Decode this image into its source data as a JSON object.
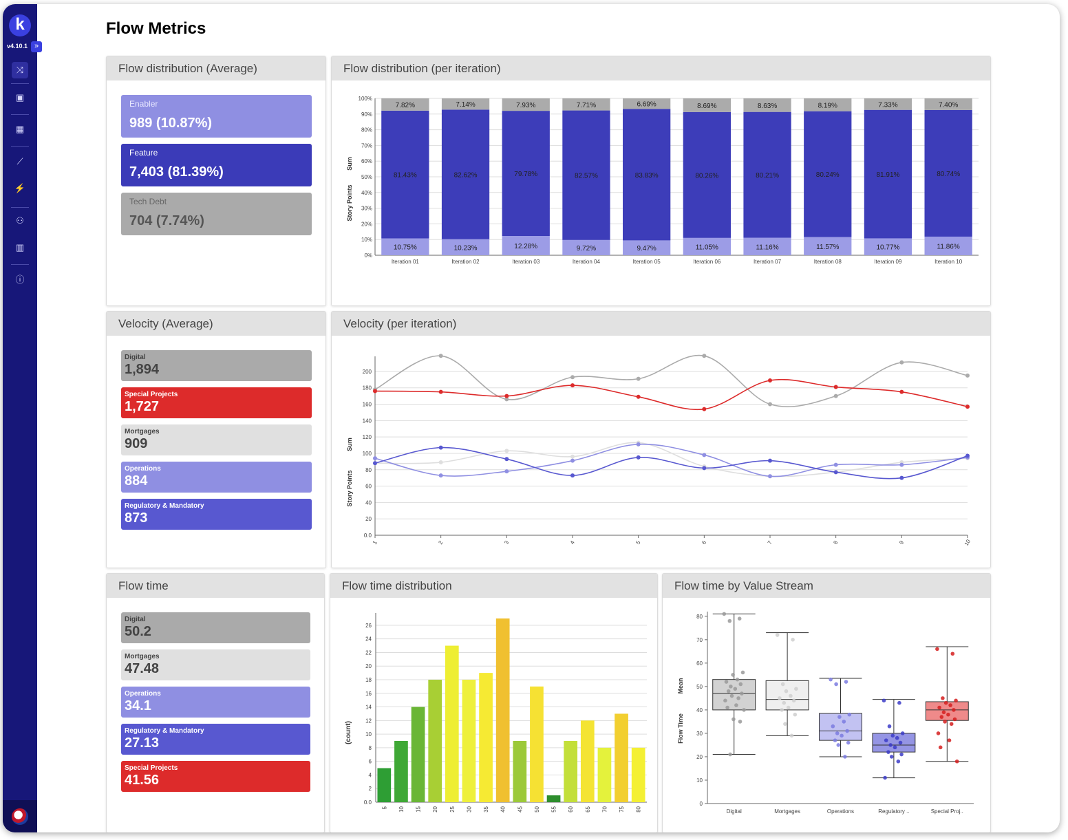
{
  "sidebar": {
    "logo_letter": "k",
    "version": "v4.10.1",
    "expand_glyph": "»",
    "items": [
      {
        "icon": "flow-icon",
        "glyph": "⤨"
      },
      {
        "icon": "briefcase-icon",
        "glyph": "▣"
      },
      {
        "icon": "calendar-icon",
        "glyph": "▦"
      },
      {
        "icon": "chart-line-icon",
        "glyph": "⟋"
      },
      {
        "icon": "plug-icon",
        "glyph": "⚡"
      },
      {
        "icon": "team-icon",
        "glyph": "⚇"
      },
      {
        "icon": "building-icon",
        "glyph": "▥"
      },
      {
        "icon": "info-icon",
        "glyph": "ⓘ"
      }
    ]
  },
  "page": {
    "title": "Flow Metrics"
  },
  "panels": {
    "flow_dist_avg": "Flow distribution (Average)",
    "flow_dist_iter": "Flow distribution (per iteration)",
    "velocity_avg": "Velocity (Average)",
    "velocity_iter": "Velocity (per iteration)",
    "flow_time": "Flow time",
    "flow_time_dist": "Flow time distribution",
    "flow_time_vs": "Flow time by Value Stream"
  },
  "flow_cards": [
    {
      "label": "Enabler",
      "value": "989 (10.87%)",
      "bg": "#8f8fe2",
      "fg": "#ffffff",
      "labcolor": "#e8e8ff"
    },
    {
      "label": "Feature",
      "value": "7,403 (81.39%)",
      "bg": "#3b3bb8",
      "fg": "#ffffff",
      "labcolor": "#ffffff"
    },
    {
      "label": "Tech Debt",
      "value": "704 (7.74%)",
      "bg": "#aaaaaa",
      "fg": "#555555",
      "labcolor": "#666666"
    }
  ],
  "velocity_cards": [
    {
      "label": "Digital",
      "value": "1,894",
      "bg": "#aaaaaa",
      "fg": "#444444"
    },
    {
      "label": "Special Projects",
      "value": "1,727",
      "bg": "#dd2b2b",
      "fg": "#ffffff"
    },
    {
      "label": "Mortgages",
      "value": "909",
      "bg": "#e0e0e0",
      "fg": "#444444"
    },
    {
      "label": "Operations",
      "value": "884",
      "bg": "#8f8fe2",
      "fg": "#ffffff"
    },
    {
      "label": "Regulatory & Mandatory",
      "value": "873",
      "bg": "#5858d0",
      "fg": "#ffffff"
    }
  ],
  "flowtime_cards": [
    {
      "label": "Digital",
      "value": "50.2",
      "bg": "#aaaaaa",
      "fg": "#444444"
    },
    {
      "label": "Mortgages",
      "value": "47.48",
      "bg": "#e0e0e0",
      "fg": "#444444"
    },
    {
      "label": "Operations",
      "value": "34.1",
      "bg": "#8f8fe2",
      "fg": "#ffffff"
    },
    {
      "label": "Regulatory & Mandatory",
      "value": "27.13",
      "bg": "#5858d0",
      "fg": "#ffffff"
    },
    {
      "label": "Special Projects",
      "value": "41.56",
      "bg": "#dd2b2b",
      "fg": "#ffffff"
    }
  ],
  "chart_data": [
    {
      "type": "bar",
      "stacked": true,
      "ylabel": "Story Points",
      "ylabel2": "Sum",
      "ylim": [
        0,
        100
      ],
      "yticks": [
        "0%",
        "10%",
        "20%",
        "30%",
        "40%",
        "50%",
        "60%",
        "70%",
        "80%",
        "90%",
        "100%"
      ],
      "categories": [
        "Iteration 01",
        "Iteration 02",
        "Iteration 03",
        "Iteration 04",
        "Iteration 05",
        "Iteration 06",
        "Iteration 07",
        "Iteration 08",
        "Iteration 09",
        "Iteration 10"
      ],
      "series": [
        {
          "values": [
            10.75,
            10.23,
            12.28,
            9.72,
            9.47,
            11.05,
            11.16,
            11.57,
            10.77,
            11.86
          ],
          "labels": [
            "10.75%",
            "10.23%",
            "12.28%",
            "9.72%",
            "9.47%",
            "11.05%",
            "11.16%",
            "11.57%",
            "10.77%",
            "11.86%"
          ],
          "color": "#9c9ce6"
        },
        {
          "values": [
            81.43,
            82.62,
            79.78,
            82.57,
            83.83,
            80.26,
            80.21,
            80.24,
            81.91,
            80.74
          ],
          "labels": [
            "81.43%",
            "82.62%",
            "79.78%",
            "82.57%",
            "83.83%",
            "80.26%",
            "80.21%",
            "80.24%",
            "81.91%",
            "80.74%"
          ],
          "color": "#3d3db9"
        },
        {
          "values": [
            7.82,
            7.14,
            7.93,
            7.71,
            6.69,
            8.69,
            8.63,
            8.19,
            7.33,
            7.4
          ],
          "labels": [
            "7.82%",
            "7.14%",
            "7.93%",
            "7.71%",
            "6.69%",
            "8.69%",
            "8.63%",
            "8.19%",
            "7.33%",
            "7.40%"
          ],
          "color": "#ababab"
        }
      ]
    },
    {
      "type": "line",
      "ylabel": "Story Points",
      "ylabel2": "Sum",
      "ylim": [
        0,
        210
      ],
      "yticks": [
        "0.0",
        "20",
        "40",
        "60",
        "80",
        "100",
        "120",
        "140",
        "160",
        "180",
        "200"
      ],
      "x": [
        "1",
        "2",
        "3",
        "4",
        "5",
        "6",
        "7",
        "8",
        "9",
        "10"
      ],
      "series": [
        {
          "color": "#ababab",
          "values": [
            178,
            219,
            166,
            193,
            191,
            219,
            160,
            170,
            211,
            195
          ]
        },
        {
          "color": "#dd2b2b",
          "values": [
            176,
            175,
            170,
            183,
            169,
            154,
            189,
            181,
            175,
            157
          ]
        },
        {
          "color": "#dedede",
          "values": [
            88,
            89,
            103,
            96,
            113,
            84,
            72,
            77,
            89,
            94
          ]
        },
        {
          "color": "#8f8fe2",
          "values": [
            94,
            73,
            78,
            91,
            111,
            98,
            72,
            86,
            86,
            95
          ]
        },
        {
          "color": "#5858d0",
          "values": [
            88,
            107,
            93,
            73,
            95,
            82,
            91,
            77,
            70,
            97
          ]
        }
      ]
    },
    {
      "type": "bar",
      "ylabel": "(count)",
      "ylim": [
        0,
        27
      ],
      "yticks": [
        "0.0",
        "2",
        "4",
        "6",
        "8",
        "10",
        "12",
        "14",
        "16",
        "18",
        "20",
        "22",
        "24",
        "26"
      ],
      "categories": [
        "5",
        "10",
        "15",
        "20",
        "25",
        "30",
        "35",
        "40",
        "45",
        "50",
        "55",
        "60",
        "65",
        "70",
        "75",
        "80"
      ],
      "values": [
        5,
        9,
        14,
        18,
        23,
        18,
        19,
        27,
        9,
        17,
        1,
        9,
        12,
        8,
        13,
        8
      ],
      "colors": [
        "#2e9e34",
        "#3fa836",
        "#6ab636",
        "#a8cf34",
        "#eeee33",
        "#eef03b",
        "#f6ea33",
        "#f0c030",
        "#9cc93a",
        "#f6e133",
        "#2e8e2e",
        "#c3df3a",
        "#f4e433",
        "#e4f23c",
        "#f2cf30",
        "#f4f033"
      ]
    },
    {
      "type": "box",
      "ylabel": "Flow Time",
      "ylabel2": "Mean",
      "ylim": [
        0,
        82
      ],
      "yticks": [
        "0",
        "10",
        "20",
        "30",
        "40",
        "50",
        "60",
        "70",
        "80"
      ],
      "categories": [
        "Digital",
        "Mortgages",
        "Operations",
        "Regulatory ..",
        "Special Proj.."
      ],
      "series": [
        {
          "min": 21,
          "q1": 40,
          "median": 47,
          "q3": 53,
          "max": 81,
          "fill": "#d2d2d2",
          "dot": "#9a9a9a",
          "points": [
            81,
            79,
            78,
            56,
            55,
            53,
            52,
            51,
            50,
            49,
            48,
            47,
            46,
            45,
            44,
            42,
            41,
            40,
            36,
            35,
            21
          ]
        },
        {
          "min": 29,
          "q1": 40,
          "median": 44.5,
          "q3": 52.5,
          "max": 73,
          "fill": "#efefef",
          "dot": "#cfcfcf",
          "points": [
            72,
            70,
            51,
            49,
            48,
            46,
            45,
            44,
            43,
            41,
            40,
            38,
            34,
            29
          ]
        },
        {
          "min": 20,
          "q1": 27,
          "median": 31,
          "q3": 38.5,
          "max": 53.5,
          "fill": "#c2c2f2",
          "dot": "#7b7be0",
          "points": [
            53,
            52,
            51,
            38,
            37,
            35,
            33,
            31,
            30,
            29,
            27,
            26,
            25,
            20
          ]
        },
        {
          "min": 11,
          "q1": 22,
          "median": 25,
          "q3": 30,
          "max": 44.5,
          "fill": "#9595e4",
          "dot": "#3c3cc8",
          "points": [
            44,
            43,
            33,
            30,
            29,
            28,
            27,
            26,
            25,
            24,
            22,
            21,
            20,
            18,
            11
          ]
        },
        {
          "min": 18,
          "q1": 35.5,
          "median": 40,
          "q3": 43.5,
          "max": 67,
          "fill": "#ef8a8a",
          "dot": "#d51f1f",
          "points": [
            66,
            64,
            45,
            44,
            43,
            42,
            41,
            40,
            39,
            38,
            37,
            36,
            35,
            34,
            30,
            27,
            24,
            18
          ]
        }
      ]
    }
  ]
}
